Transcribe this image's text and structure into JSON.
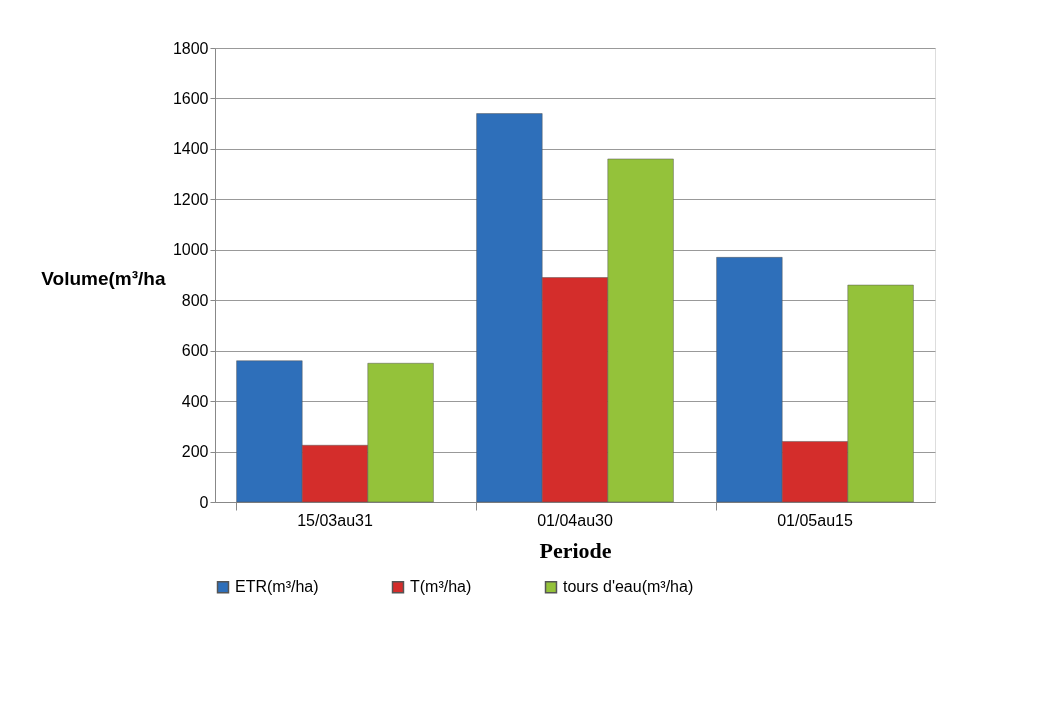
{
  "chart_data": {
    "type": "bar",
    "xlabel": "Periode",
    "ylabel": "Volume(m³/ha",
    "categories": [
      "15/03au31",
      "01/04au30",
      "01/05au15"
    ],
    "series": [
      {
        "name": "ETR(m³/ha)",
        "color": "#2e6fba",
        "values": [
          560,
          1540,
          970
        ]
      },
      {
        "name": "T(m³/ha)",
        "color": "#d42d2b",
        "values": [
          225,
          890,
          240
        ]
      },
      {
        "name": "tours d'eau(m³/ha)",
        "color": "#94c23a",
        "values": [
          550,
          1360,
          860
        ]
      }
    ],
    "ylim": [
      0,
      1800
    ],
    "yticks": [
      0,
      200,
      400,
      600,
      800,
      1000,
      1200,
      1400,
      1600,
      1800
    ],
    "grid": "y",
    "legend": "bottom"
  }
}
